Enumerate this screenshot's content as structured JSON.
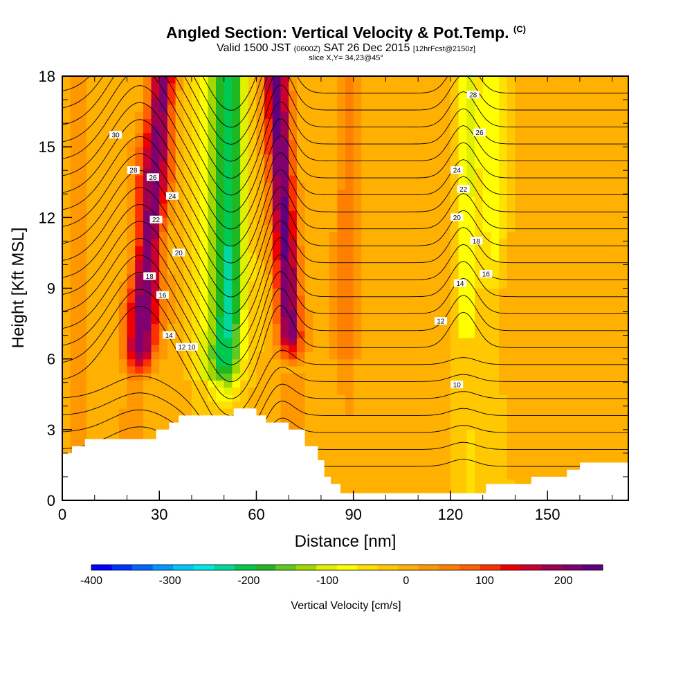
{
  "header": {
    "title": "Angled Section: Vertical Velocity & Pot.Temp.",
    "title_unit": "(C)",
    "subtitle_prefix": "Valid 1500 JST",
    "subtitle_zulu": "(0600Z)",
    "subtitle_date": "SAT 26 Dec 2015",
    "subtitle_fcst": "[12hrFcst@2150z]",
    "slice": "slice X,Y= 34,23@45°"
  },
  "chart_data": {
    "type": "heatmap",
    "title": "Angled Section: Vertical Velocity & Pot.Temp.",
    "xlabel": "Distance [nm]",
    "ylabel": "Height [Kft MSL]",
    "xlim": [
      0,
      175
    ],
    "ylim": [
      0,
      18
    ],
    "x_ticks": [
      "0",
      "30",
      "60",
      "90",
      "120",
      "150"
    ],
    "y_ticks": [
      "0",
      "3",
      "6",
      "9",
      "12",
      "15",
      "18"
    ],
    "colorbar": {
      "label": "Vertical Velocity [cm/s]",
      "tick_labels": [
        "-400",
        "-300",
        "-200",
        "-100",
        "0",
        "100",
        "200"
      ],
      "tick_values": [
        -400,
        -300,
        -200,
        -100,
        0,
        100,
        200
      ],
      "range": [
        -400,
        250
      ],
      "colors": [
        "#0000ff",
        "#0033ff",
        "#0066ff",
        "#0099ff",
        "#00c8ff",
        "#00e8e8",
        "#00d8a0",
        "#00c850",
        "#20b820",
        "#60c820",
        "#a0d800",
        "#e0f000",
        "#ffff00",
        "#ffe000",
        "#ffc800",
        "#ffb000",
        "#ff9800",
        "#ff8000",
        "#ff6000",
        "#ff3000",
        "#ee0000",
        "#cc0030",
        "#a00050",
        "#800070",
        "#600080"
      ]
    },
    "potential_temperature_labels": [
      "30",
      "28",
      "26",
      "24",
      "22",
      "20",
      "18",
      "16",
      "14",
      "12",
      "10",
      "28",
      "26",
      "24",
      "22",
      "20",
      "18",
      "16",
      "14",
      "12",
      "10"
    ],
    "velocity_features": [
      {
        "name": "updraft",
        "x": 25,
        "min_w": 0,
        "max_w": 220
      },
      {
        "name": "downdraft",
        "x": 50,
        "min_w": -200,
        "max_w": 0
      },
      {
        "name": "updraft",
        "x": 67,
        "min_w": 0,
        "max_w": 230
      },
      {
        "name": "updraft",
        "x": 88,
        "min_w": 0,
        "max_w": 60
      },
      {
        "name": "downdraft",
        "x": 125,
        "min_w": -100,
        "max_w": 0
      }
    ],
    "terrain_kft": [
      [
        0,
        2.0
      ],
      [
        3,
        2.3
      ],
      [
        7,
        2.6
      ],
      [
        22,
        2.6
      ],
      [
        29,
        3.0
      ],
      [
        33,
        3.3
      ],
      [
        36,
        3.6
      ],
      [
        52,
        3.6
      ],
      [
        53,
        3.9
      ],
      [
        58,
        3.9
      ],
      [
        60,
        3.6
      ],
      [
        63,
        3.3
      ],
      [
        68,
        3.3
      ],
      [
        70,
        3.0
      ],
      [
        75,
        2.3
      ],
      [
        79,
        1.7
      ],
      [
        81,
        1.0
      ],
      [
        83,
        0.7
      ],
      [
        86,
        0.3
      ],
      [
        120,
        0.3
      ],
      [
        131,
        0.7
      ],
      [
        143,
        0.7
      ],
      [
        145,
        1.0
      ],
      [
        153,
        1.0
      ],
      [
        156,
        1.3
      ],
      [
        160,
        1.6
      ],
      [
        175,
        1.6
      ]
    ]
  }
}
